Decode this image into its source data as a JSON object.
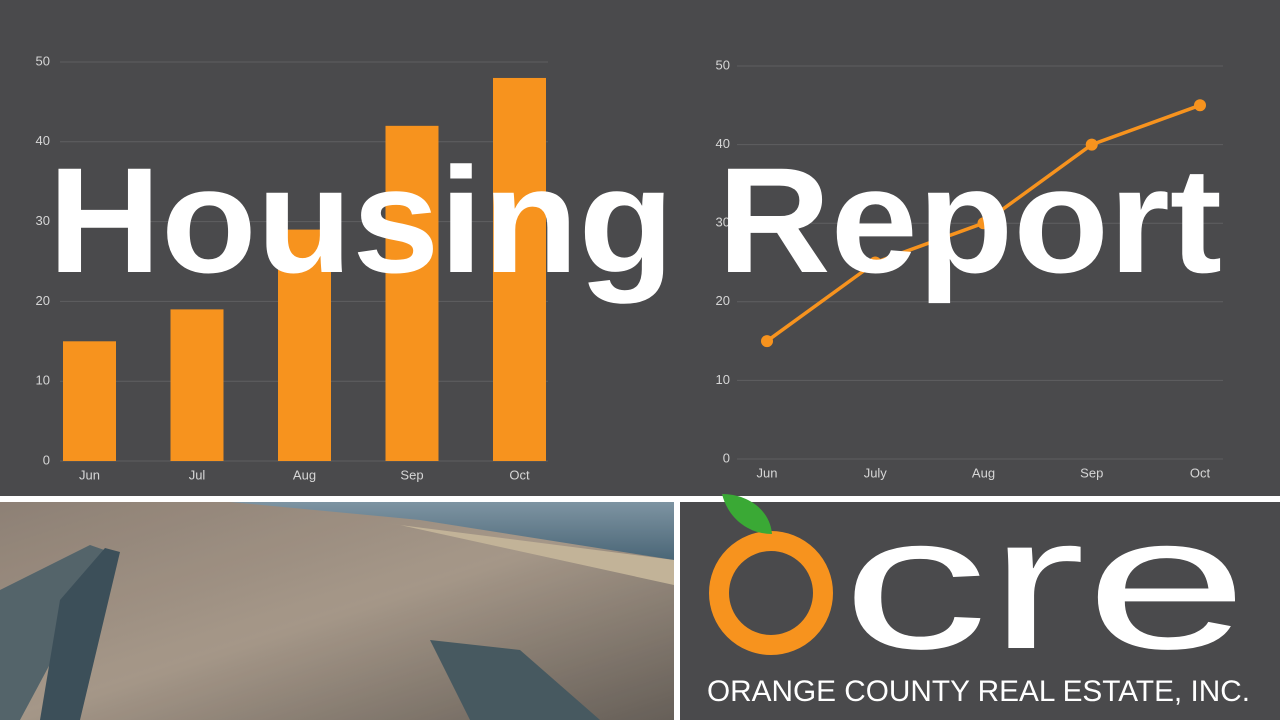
{
  "title": "Housing Report",
  "chart_data": [
    {
      "type": "bar",
      "categories": [
        "Jun",
        "Jul",
        "Aug",
        "Sep",
        "Oct"
      ],
      "values": [
        15,
        19,
        29,
        42,
        48
      ],
      "color": "#f7931e",
      "ylim": [
        0,
        50
      ],
      "yticks": [
        0,
        10,
        20,
        30,
        40,
        50
      ],
      "grid": true
    },
    {
      "type": "line",
      "categories": [
        "Jun",
        "July",
        "Aug",
        "Sep",
        "Oct"
      ],
      "values": [
        15,
        25,
        30,
        40,
        45
      ],
      "color": "#f7931e",
      "ylim": [
        0,
        50
      ],
      "yticks": [
        0,
        10,
        20,
        30,
        40,
        50
      ],
      "grid": true
    }
  ],
  "logo": {
    "wordmark": "cre",
    "company": "ORANGE COUNTY REAL ESTATE, INC."
  }
}
